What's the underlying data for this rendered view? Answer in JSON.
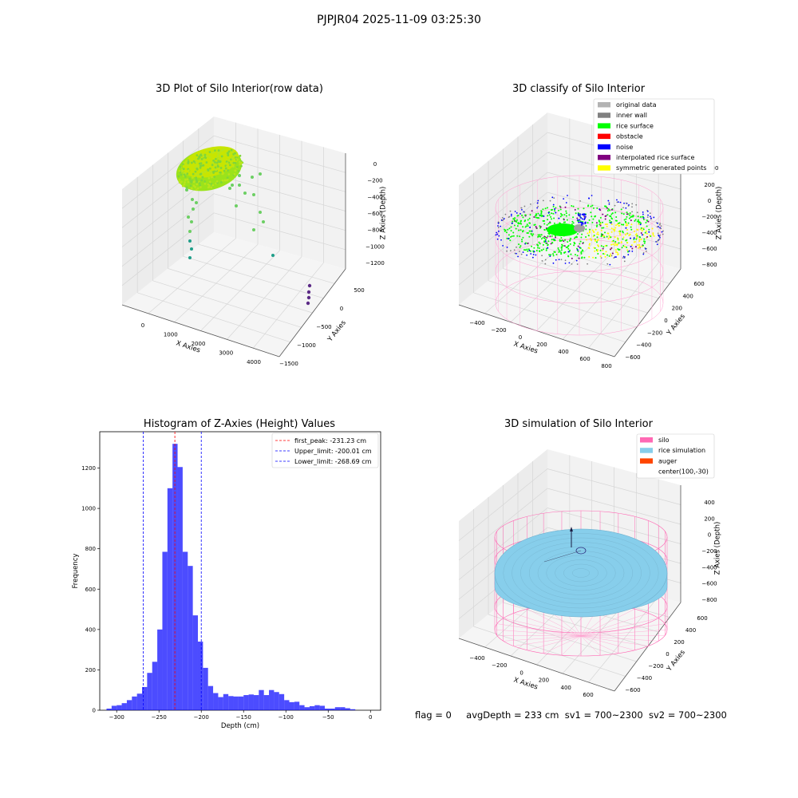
{
  "figure_title": "PJPJR04 2025-11-09 03:25:30",
  "footer": {
    "flag": "flag = 0",
    "avg_depth": "avgDepth = 233 cm",
    "sv1": "sv1 = 700~2300",
    "sv2": "sv2 = 700~2300"
  },
  "panels": {
    "raw": {
      "title": "3D Plot of Silo Interior(row data)",
      "xlabel": "X Axies",
      "ylabel": "Y Axies",
      "zlabel": "Z Axies (Depth)",
      "xticks": [
        "0",
        "1000",
        "2000",
        "3000",
        "4000"
      ],
      "yticks": [
        "500",
        "0",
        "−500",
        "−1000",
        "−1500"
      ],
      "zticks": [
        "0",
        "−200",
        "−400",
        "−600",
        "−800",
        "−1000",
        "−1200"
      ]
    },
    "classify": {
      "title": "3D classify of Silo Interior",
      "xlabel": "X Axies",
      "ylabel": "Y Axies",
      "zlabel": "Z Axies (Depth)",
      "xticks": [
        "−400",
        "−200",
        "0",
        "200",
        "400",
        "600",
        "800"
      ],
      "yticks": [
        "600",
        "400",
        "200",
        "0",
        "−200",
        "−400",
        "−600"
      ],
      "zticks": [
        "200",
        "0",
        "−200",
        "−400",
        "−600",
        "−800"
      ],
      "ztick_partial": "00",
      "legend": [
        {
          "label": "original data",
          "color": "#b3b3b3"
        },
        {
          "label": "inner wall",
          "color": "#808080"
        },
        {
          "label": "rice surface",
          "color": "#00ff00"
        },
        {
          "label": "obstacle",
          "color": "#ff0000"
        },
        {
          "label": "noise",
          "color": "#0000ff"
        },
        {
          "label": "interpolated rice surface",
          "color": "#800080"
        },
        {
          "label": "symmetric generated points",
          "color": "#ffff00"
        }
      ]
    },
    "sim": {
      "title": "3D simulation of Silo Interior",
      "xlabel": "X Axies",
      "ylabel": "Y Axies",
      "zlabel": "Z Axies (Depth)",
      "xticks": [
        "−400",
        "−200",
        "0",
        "200",
        "400",
        "600"
      ],
      "yticks": [
        "600",
        "400",
        "200",
        "0",
        "−200",
        "−400",
        "−600"
      ],
      "zticks": [
        "400",
        "200",
        "0",
        "−200",
        "−400",
        "−600",
        "−800"
      ],
      "legend": [
        {
          "label": "silo",
          "color": "#ff69b4"
        },
        {
          "label": "rice simulation",
          "color": "#87ceeb"
        },
        {
          "label": "auger",
          "color": "#ff4500"
        },
        {
          "label": "center(100,-30)",
          "color": ""
        }
      ]
    }
  },
  "chart_data": [
    {
      "type": "histogram",
      "title": "Histogram of Z-Axies (Height) Values",
      "xlabel": "Depth (cm)",
      "ylabel": "Frequency",
      "xlim": [
        -320,
        12
      ],
      "ylim": [
        0,
        1380
      ],
      "xticks": [
        -300,
        -250,
        -200,
        -150,
        -100,
        -50,
        0
      ],
      "yticks": [
        0,
        200,
        400,
        600,
        800,
        1000,
        1200
      ],
      "bar_color": "#0000ff",
      "bin_start": -312,
      "bin_width": 6,
      "values": [
        8,
        22,
        25,
        35,
        50,
        68,
        82,
        115,
        185,
        240,
        400,
        785,
        1100,
        1320,
        1205,
        785,
        715,
        470,
        340,
        210,
        120,
        85,
        65,
        80,
        70,
        68,
        68,
        75,
        78,
        75,
        100,
        75,
        100,
        90,
        80,
        50,
        40,
        42,
        25,
        15,
        20,
        25,
        22,
        8,
        8,
        15,
        15,
        10,
        5,
        0
      ],
      "lines": [
        {
          "label": "first_peak: -231.23 cm",
          "value": -231.23,
          "color": "#ff0000"
        },
        {
          "label": "Upper_limit: -200.01 cm",
          "value": -200.01,
          "color": "#0000ff"
        },
        {
          "label": "Lower_limit: -268.69 cm",
          "value": -268.69,
          "color": "#0000ff"
        }
      ],
      "legend_position": "top-right",
      "grid": false
    }
  ]
}
